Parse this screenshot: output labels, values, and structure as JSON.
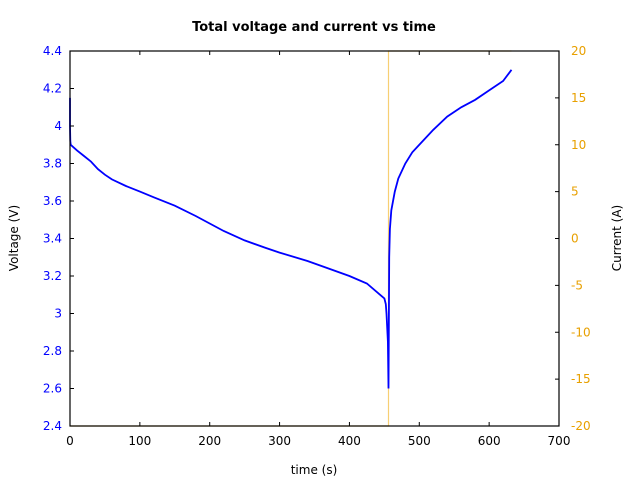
{
  "chart_data": {
    "type": "line",
    "title": "Total voltage and current vs time",
    "xlabel": "time (s)",
    "ylabel": "Voltage (V)",
    "y2label": "Current (A)",
    "xlim": [
      0,
      700
    ],
    "ylim": [
      2.4,
      4.4
    ],
    "y2lim": [
      -20,
      20
    ],
    "xticks": [
      "0",
      "100",
      "200",
      "300",
      "400",
      "500",
      "600",
      "700"
    ],
    "yticks": [
      "2.4",
      "2.6",
      "2.8",
      "3",
      "3.2",
      "3.4",
      "3.6",
      "3.8",
      "4",
      "4.2",
      "4.4"
    ],
    "y2ticks": [
      "-20",
      "-15",
      "-10",
      "-5",
      "0",
      "5",
      "10",
      "15",
      "20"
    ],
    "grid": false,
    "legend": null,
    "colors": {
      "voltage": "#0000ff",
      "current": "#f0a800",
      "voltage_ticks": "#0000ff",
      "current_ticks": "#e8a000"
    },
    "series": [
      {
        "name": "Voltage",
        "axis": "left",
        "x": [
          0,
          0,
          0.5,
          1,
          10,
          20,
          30,
          40,
          50,
          60,
          80,
          100,
          120,
          150,
          180,
          200,
          220,
          250,
          280,
          300,
          340,
          370,
          400,
          425,
          450,
          452,
          453,
          455,
          456,
          456.5,
          457,
          458,
          460,
          465,
          470,
          480,
          490,
          500,
          520,
          540,
          560,
          580,
          600,
          620,
          632
        ],
        "y": [
          4.15,
          4.0,
          3.92,
          3.9,
          3.87,
          3.84,
          3.81,
          3.77,
          3.74,
          3.715,
          3.68,
          3.65,
          3.62,
          3.575,
          3.52,
          3.48,
          3.44,
          3.39,
          3.35,
          3.325,
          3.28,
          3.24,
          3.2,
          3.16,
          3.08,
          3.05,
          3.0,
          2.85,
          2.6,
          3.0,
          3.3,
          3.45,
          3.55,
          3.65,
          3.72,
          3.8,
          3.86,
          3.9,
          3.98,
          4.05,
          4.1,
          4.14,
          4.19,
          4.24,
          4.3
        ]
      },
      {
        "name": "Current",
        "axis": "right",
        "x": [
          0,
          456,
          456,
          632
        ],
        "y": [
          -20,
          -20,
          20,
          20
        ]
      }
    ]
  }
}
